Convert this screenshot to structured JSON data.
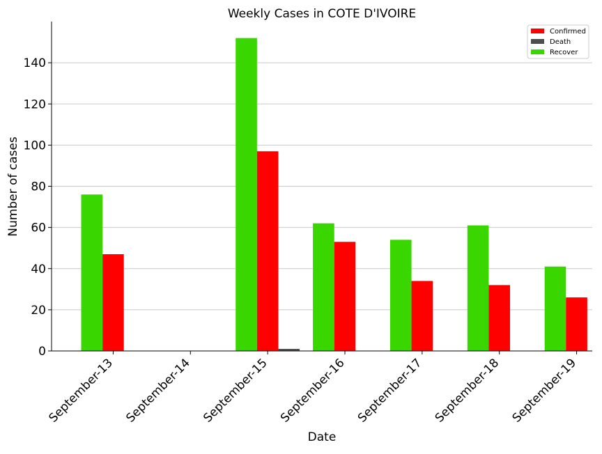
{
  "chart_data": {
    "type": "bar",
    "title": "Weekly Cases in COTE D'IVOIRE",
    "xlabel": "Date",
    "ylabel": "Number of cases",
    "categories": [
      "September-13",
      "September-14",
      "September-15",
      "September-16",
      "September-17",
      "September-18",
      "September-19"
    ],
    "series": [
      {
        "name": "Recover",
        "color": "#3ad600",
        "values": [
          76,
          0,
          152,
          62,
          54,
          61,
          41
        ]
      },
      {
        "name": "Confirmed",
        "color": "#ff0000",
        "values": [
          47,
          0,
          97,
          53,
          34,
          32,
          26
        ]
      },
      {
        "name": "Death",
        "color": "#4d4d4d",
        "values": [
          0,
          0,
          1,
          0,
          0,
          0,
          0
        ]
      }
    ],
    "legend_order": [
      "Confirmed",
      "Death",
      "Recover"
    ],
    "ylim": [
      0,
      160
    ],
    "yticks": [
      0,
      20,
      40,
      60,
      80,
      100,
      120,
      140
    ],
    "grid": "horizontal",
    "legend_position": "top-right"
  }
}
